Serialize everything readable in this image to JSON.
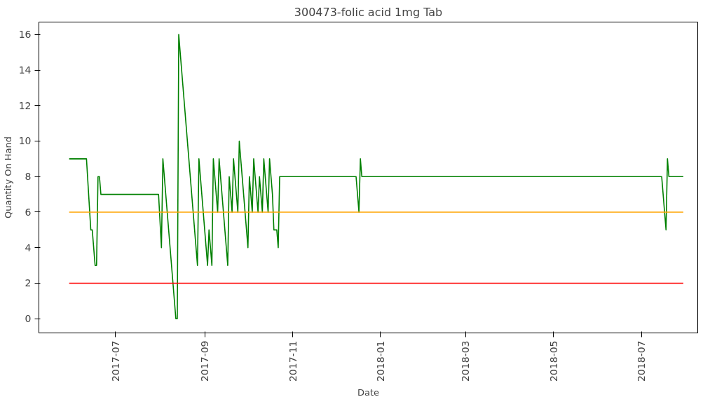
{
  "chart_data": {
    "type": "line",
    "title": "300473-folic acid 1mg Tab",
    "xlabel": "Date",
    "ylabel": "Quantity On Hand",
    "series": [
      {
        "color": "#008000",
        "x": [
          "2017-05-30",
          "2017-06-11",
          "2017-06-14",
          "2017-06-15",
          "2017-06-17",
          "2017-06-18",
          "2017-06-19",
          "2017-06-20",
          "2017-06-21",
          "2017-07-31",
          "2017-08-02",
          "2017-08-03",
          "2017-08-12",
          "2017-08-13",
          "2017-08-14",
          "2017-08-27",
          "2017-08-28",
          "2017-09-03",
          "2017-09-04",
          "2017-09-06",
          "2017-09-07",
          "2017-09-10",
          "2017-09-11",
          "2017-09-17",
          "2017-09-18",
          "2017-09-20",
          "2017-09-21",
          "2017-09-24",
          "2017-09-25",
          "2017-10-01",
          "2017-10-02",
          "2017-10-04",
          "2017-10-05",
          "2017-10-08",
          "2017-10-09",
          "2017-10-11",
          "2017-10-12",
          "2017-10-15",
          "2017-10-16",
          "2017-10-18",
          "2017-10-19",
          "2017-10-21",
          "2017-10-22",
          "2017-10-23",
          "2017-12-15",
          "2017-12-17",
          "2017-12-18",
          "2017-12-19",
          "2018-07-15",
          "2018-07-18",
          "2018-07-19",
          "2018-07-20",
          "2018-07-30"
        ],
        "values": [
          9,
          9,
          5,
          5,
          3,
          3,
          8,
          8,
          7,
          7,
          4,
          9,
          0,
          0,
          16,
          3,
          9,
          3,
          5,
          3,
          9,
          6,
          9,
          3,
          8,
          6,
          9,
          6,
          10,
          4,
          8,
          6,
          9,
          6,
          8,
          6,
          9,
          6,
          9,
          7,
          5,
          5,
          4,
          8,
          8,
          6,
          9,
          8,
          8,
          5,
          9,
          8,
          8
        ]
      }
    ],
    "ref_lines": [
      {
        "axis": "y",
        "value": 6,
        "color": "#ffa500"
      },
      {
        "axis": "y",
        "value": 2,
        "color": "#ff0000"
      }
    ],
    "xlim": [
      "2017-05-09",
      "2018-08-09"
    ],
    "xticks": [
      "2017-07",
      "2017-09",
      "2017-11",
      "2018-01",
      "2018-03",
      "2018-05",
      "2018-07"
    ],
    "ylim": [
      -0.8,
      16.7
    ],
    "yticks": [
      0,
      2,
      4,
      6,
      8,
      10,
      12,
      14,
      16
    ],
    "grid": false
  }
}
